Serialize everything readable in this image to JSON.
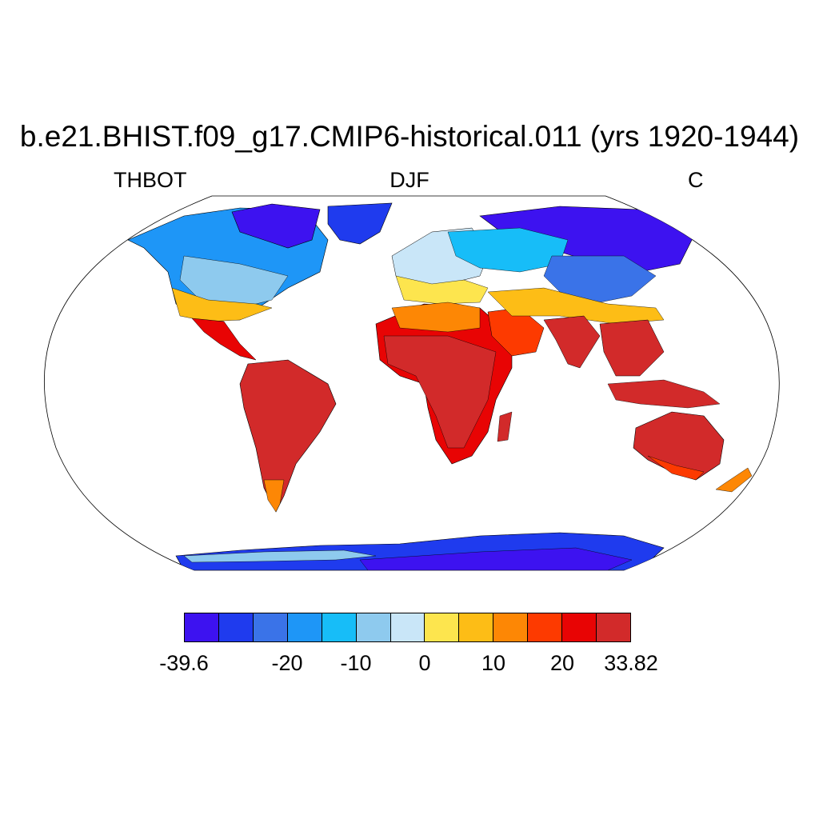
{
  "title": "b.e21.BHIST.f09_g17.CMIP6-historical.011 (yrs 1920-1944)",
  "subtitles": {
    "left": "THBOT",
    "center": "DJF",
    "right": "C"
  },
  "map": {
    "projection": "robinson",
    "variable": "THBOT",
    "season": "DJF",
    "units": "C",
    "ocean_color": "#ffffff",
    "land_outline_color": "#000000"
  },
  "colorbar": {
    "colors": [
      "#3d12f0",
      "#1f3bee",
      "#3a73e8",
      "#1e96f7",
      "#17bdf8",
      "#8ecaee",
      "#c9e6f8",
      "#fde54e",
      "#fdbd16",
      "#fd8705",
      "#fd3a00",
      "#e80404",
      "#d22a2a"
    ],
    "labels": [
      "-39.6",
      "-20",
      "-10",
      "0",
      "10",
      "20",
      "33.82"
    ],
    "label_boundary_index": [
      0,
      3,
      5,
      7,
      9,
      11,
      13
    ]
  },
  "regions": [
    {
      "name": "north-america",
      "c": 2
    },
    {
      "name": "greenland",
      "c": 1
    },
    {
      "name": "canada-arctic",
      "c": 0
    },
    {
      "name": "central-america",
      "c": 12
    },
    {
      "name": "south-america",
      "c": 12
    },
    {
      "name": "europe",
      "c": 6
    },
    {
      "name": "africa",
      "c": 12
    },
    {
      "name": "arabia",
      "c": 10
    },
    {
      "name": "siberia",
      "c": 0
    },
    {
      "name": "central-asia",
      "c": 4
    },
    {
      "name": "india",
      "c": 12
    },
    {
      "name": "southeast-asia",
      "c": 12
    },
    {
      "name": "australia",
      "c": 12
    },
    {
      "name": "antarctica",
      "c": 0
    }
  ]
}
